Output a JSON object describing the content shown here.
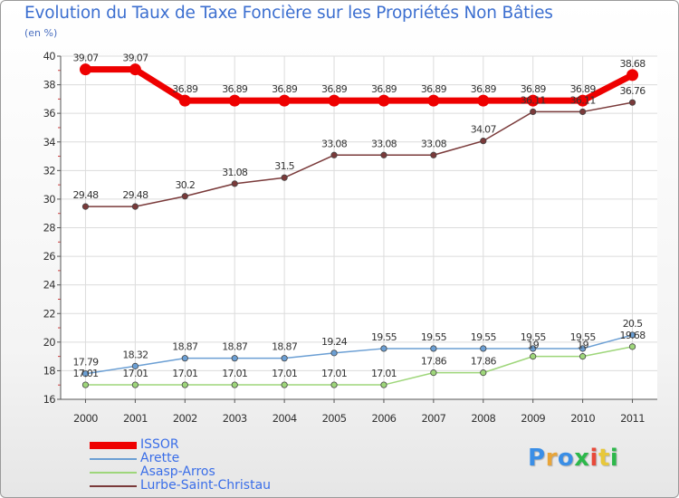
{
  "header": {
    "title": "Evolution du Taux de Taxe Foncière sur les Propriétés Non Bâties",
    "unit": "(en %)"
  },
  "brand": {
    "letters": [
      "P",
      "r",
      "o",
      "x",
      "i",
      "t",
      "i"
    ],
    "colors": [
      "#3a8ee6",
      "#e8a53a",
      "#3a8ee6",
      "#2db84b",
      "#e84a3a",
      "#e8c83a",
      "#2db84b"
    ]
  },
  "chart_data": {
    "type": "line",
    "title": "Evolution du Taux de Taxe Foncière sur les Propriétés Non Bâties",
    "ylabel": "(en %)",
    "xlabel": "",
    "categories": [
      "2000",
      "2001",
      "2002",
      "2003",
      "2004",
      "2005",
      "2006",
      "2007",
      "2008",
      "2009",
      "2010",
      "2011"
    ],
    "ylim": [
      16,
      40
    ],
    "yticks": [
      16,
      18,
      20,
      22,
      24,
      26,
      28,
      30,
      32,
      34,
      36,
      38,
      40
    ],
    "grid": true,
    "legend_position": "bottom-left",
    "series": [
      {
        "name": "ISSOR",
        "color": "#ee0000",
        "values": [
          39.07,
          39.07,
          36.89,
          36.89,
          36.89,
          36.89,
          36.89,
          36.89,
          36.89,
          36.89,
          36.89,
          38.68
        ],
        "labels": [
          "39.07",
          "39.07",
          "36.89",
          "36.89",
          "36.89",
          "36.89",
          "36.89",
          "36.89",
          "36.89",
          "36.89",
          "36.89",
          "38.68"
        ]
      },
      {
        "name": "Arette",
        "color": "#6b9fd4",
        "values": [
          17.79,
          18.32,
          18.87,
          18.87,
          18.87,
          19.24,
          19.55,
          19.55,
          19.55,
          19.55,
          19.55,
          20.5
        ],
        "labels": [
          "17.79",
          "18.32",
          "18.87",
          "18.87",
          "18.87",
          "19.24",
          "19.55",
          "19.55",
          "19.55",
          "19.55",
          "19.55",
          "20.5"
        ]
      },
      {
        "name": "Asasp-Arros",
        "color": "#9ed67a",
        "values": [
          17.01,
          17.01,
          17.01,
          17.01,
          17.01,
          17.01,
          17.01,
          17.86,
          17.86,
          19.0,
          19.0,
          19.68
        ],
        "labels": [
          "17.01",
          "17.01",
          "17.01",
          "17.01",
          "17.01",
          "17.01",
          "17.01",
          "17.86",
          "17.86",
          "19",
          "19",
          "19.68"
        ]
      },
      {
        "name": "Lurbe-Saint-Christau",
        "color": "#7a3a3a",
        "values": [
          29.48,
          29.48,
          30.2,
          31.08,
          31.5,
          33.08,
          33.08,
          33.08,
          34.07,
          36.11,
          36.11,
          36.76
        ],
        "labels": [
          "29.48",
          "29.48",
          "30.2",
          "31.08",
          "31.5",
          "33.08",
          "33.08",
          "33.08",
          "34.07",
          "36.11",
          "36.11",
          "36.76"
        ]
      }
    ]
  }
}
